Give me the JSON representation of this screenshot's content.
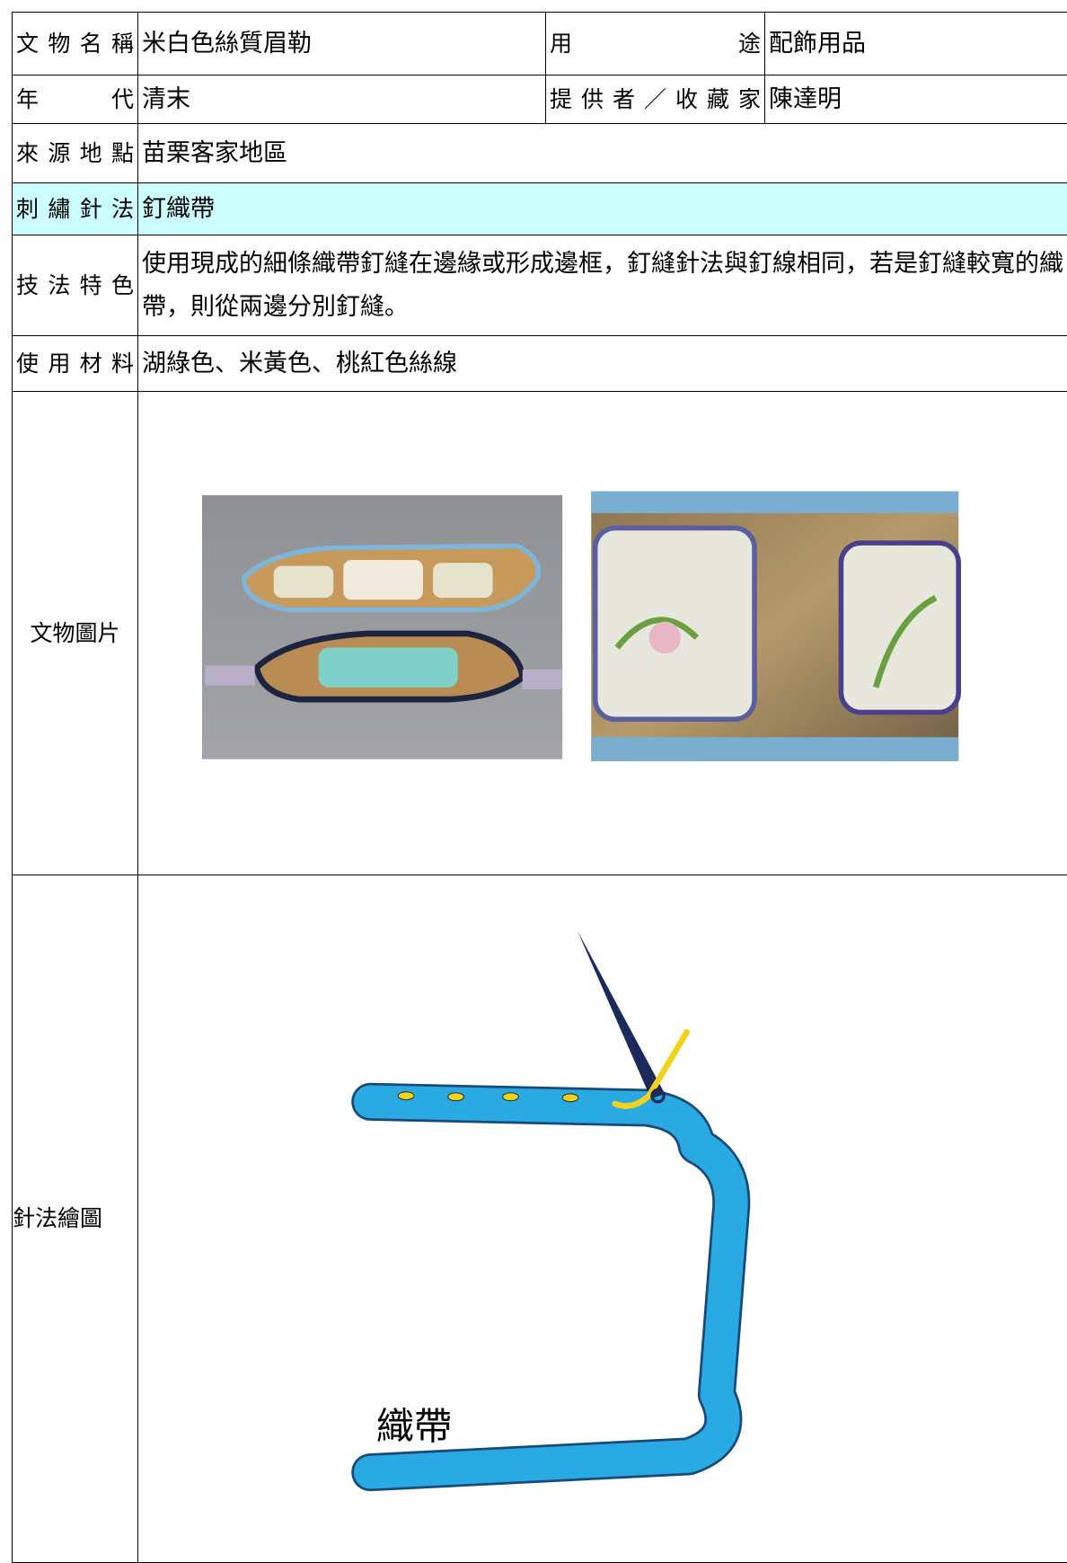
{
  "table": {
    "rows": [
      [
        "文物名稱",
        "米白色絲質眉勒",
        "用途",
        "配飾用品"
      ],
      [
        "年代",
        "清末",
        "提供者／收藏家",
        "陳達明"
      ],
      [
        "來源地點",
        "苗栗客家地區"
      ],
      [
        "刺繡針法",
        "釘織帶"
      ],
      [
        "技法特色",
        "使用現成的細條織帶釘縫在邊緣或形成邊框，釘縫針法與釘線相同，若是釘縫較寬的織帶，則從兩邊分別釘縫。"
      ],
      [
        "使用材料",
        "湖綠色、米黃色、桃紅色絲線"
      ],
      [
        "文物圖片"
      ],
      [
        "針法繪圖"
      ]
    ]
  },
  "diagram": {
    "label": "織帶"
  }
}
